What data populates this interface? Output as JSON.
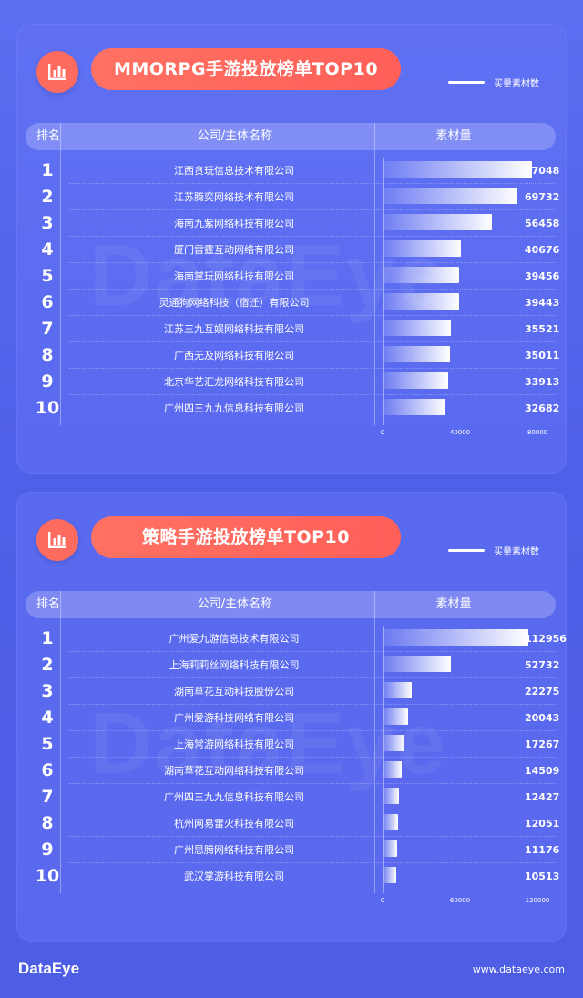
{
  "watermark": "DataEye",
  "legend_label": "买量素材数",
  "header": {
    "rank": "排名",
    "company": "公司/主体名称",
    "value": "素材量"
  },
  "footer": {
    "logo": "DataEye",
    "url": "www.dataeye.com"
  },
  "colors": {
    "accent": "#ff6b5e",
    "background": "#5464ea",
    "bar_end": "#ffffff"
  },
  "chart_data": [
    {
      "type": "bar",
      "orientation": "horizontal",
      "title": "MMORPG手游投放榜单TOP10",
      "legend": [
        "买量素材数"
      ],
      "ranks": [
        "1",
        "2",
        "3",
        "4",
        "5",
        "6",
        "7",
        "8",
        "9",
        "10"
      ],
      "categories": [
        "江西贪玩信息技术有限公司",
        "江苏腾奕网络技术有限公司",
        "海南九紫网络科技有限公司",
        "厦门雷霆互动网络有限公司",
        "海南掌玩网络科技有限公司",
        "灵通狗网络科技（宿迁）有限公司",
        "江苏三九互娱网络科技有限公司",
        "广西无及网络科技有限公司",
        "北京华艺汇龙网络科技有限公司",
        "广州四三九九信息科技有限公司"
      ],
      "values": [
        77048,
        69732,
        56458,
        40676,
        39456,
        39443,
        35521,
        35011,
        33913,
        32682
      ],
      "xlim": [
        0,
        80000
      ],
      "ticks": [
        0,
        40000,
        80000
      ]
    },
    {
      "type": "bar",
      "orientation": "horizontal",
      "title": "策略手游投放榜单TOP10",
      "legend": [
        "买量素材数"
      ],
      "ranks": [
        "1",
        "2",
        "3",
        "4",
        "5",
        "6",
        "7",
        "8",
        "9",
        "10"
      ],
      "categories": [
        "广州爱九游信息技术有限公司",
        "上海莉莉丝网络科技有限公司",
        "湖南草花互动科技股份公司",
        "广州爱游科技网络有限公司",
        "上海常游网络科技有限公司",
        "湖南草花互动网络科技有限公司",
        "广州四三九九信息科技有限公司",
        "杭州网易雷火科技有限公司",
        "广州思腾网络科技有限公司",
        "武汉掌游科技有限公司"
      ],
      "values": [
        112956,
        52732,
        22275,
        20043,
        17267,
        14509,
        12427,
        12051,
        11176,
        10513
      ],
      "xlim": [
        0,
        120000
      ],
      "ticks": [
        0,
        60000,
        120000
      ]
    }
  ]
}
